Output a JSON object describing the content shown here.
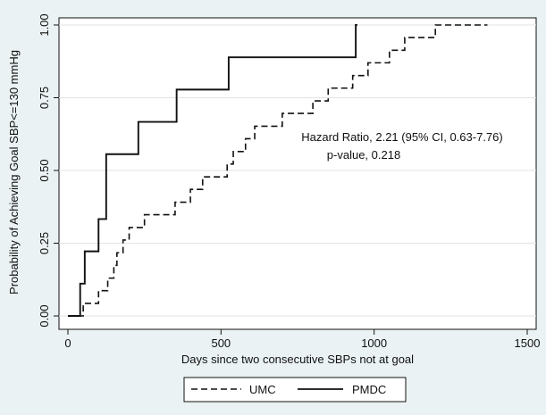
{
  "chart_data": {
    "type": "line",
    "xlabel": "Days since two consecutive SBPs not at goal",
    "ylabel": "Probability of Achieving Goal SBP<=130 mmHg",
    "xlim": [
      0,
      1500
    ],
    "ylim": [
      0,
      1
    ],
    "x_ticks": [
      0,
      500,
      1000,
      1500
    ],
    "x_tick_labels": [
      "0",
      "500",
      "1000",
      "1500"
    ],
    "y_ticks": [
      0,
      0.25,
      0.5,
      0.75,
      1
    ],
    "y_tick_labels": [
      "0.00",
      "0.25",
      "0.50",
      "0.75",
      "1.00"
    ],
    "grid": "horizontal",
    "legend_placement": "bottom",
    "annotation": [
      "Hazard Ratio, 2.21 (95% CI, 0.63-7.76)",
      "p-value, 0.218"
    ],
    "series": [
      {
        "name": "UMC",
        "style": "dashed",
        "color": "#111111",
        "x": [
          0,
          50,
          50,
          100,
          100,
          130,
          130,
          150,
          150,
          160,
          160,
          180,
          180,
          200,
          200,
          230,
          230,
          250,
          250,
          350,
          350,
          400,
          400,
          440,
          440,
          520,
          520,
          540,
          540,
          580,
          580,
          610,
          610,
          700,
          700,
          800,
          800,
          850,
          850,
          930,
          930,
          980,
          980,
          1050,
          1050,
          1100,
          1100,
          1200,
          1200,
          1290,
          1290,
          1350,
          1350,
          1370
        ],
        "y": [
          0,
          0,
          0.043,
          0.043,
          0.087,
          0.087,
          0.13,
          0.13,
          0.174,
          0.174,
          0.217,
          0.217,
          0.261,
          0.261,
          0.304,
          0.304,
          0.304,
          0.304,
          0.348,
          0.348,
          0.391,
          0.391,
          0.435,
          0.435,
          0.478,
          0.478,
          0.522,
          0.522,
          0.565,
          0.565,
          0.609,
          0.609,
          0.652,
          0.652,
          0.696,
          0.696,
          0.739,
          0.739,
          0.783,
          0.783,
          0.826,
          0.826,
          0.87,
          0.87,
          0.913,
          0.913,
          0.957,
          0.957,
          1.0,
          1.0,
          1.0,
          1.0,
          1.0,
          1.0
        ]
      },
      {
        "name": "PMDC",
        "style": "solid",
        "color": "#111111",
        "x": [
          0,
          40,
          40,
          55,
          55,
          100,
          100,
          125,
          125,
          230,
          230,
          355,
          355,
          525,
          525,
          940,
          940,
          945
        ],
        "y": [
          0,
          0,
          0.111,
          0.111,
          0.222,
          0.222,
          0.333,
          0.333,
          0.556,
          0.556,
          0.667,
          0.667,
          0.778,
          0.778,
          0.889,
          0.889,
          1.0,
          1.0
        ]
      }
    ]
  }
}
